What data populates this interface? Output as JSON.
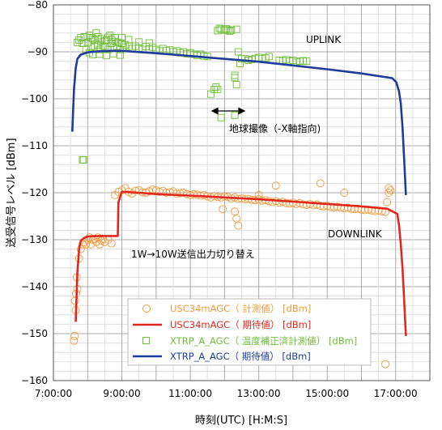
{
  "chart_data": {
    "type": "line",
    "xlabel": "時刻(UTC) [H:M:S]",
    "ylabel": "送受信号レベル [dBm]",
    "xlim": [
      7.0,
      18.0
    ],
    "ylim": [
      -160,
      -80
    ],
    "x_ticks": [
      7,
      9,
      11,
      13,
      15,
      17
    ],
    "x_tick_labels": [
      "7:00:00",
      "9:00:00",
      "11:00:00",
      "13:00:00",
      "15:00:00",
      "17:00:00"
    ],
    "y_ticks": [
      -80,
      -90,
      -100,
      -110,
      -120,
      -130,
      -140,
      -150,
      -160
    ],
    "y_tick_labels": [
      "−80",
      "−90",
      "−100",
      "−110",
      "−120",
      "−130",
      "−140",
      "−150",
      "−160"
    ],
    "grid": true,
    "legend_position": "bottom-center",
    "colors": {
      "usc_measured": "#f39a3c",
      "usc_expected": "#e0281e",
      "xtrp_measured": "#6fbf3a",
      "xtrp_expected": "#1f3c9a"
    },
    "annotations": {
      "uplink": "UPLINK",
      "downlink": "DOWNLINK",
      "earth_obs": "地球撮像（-X軸指向)",
      "switch": "1W→10W送信出力切り替え"
    },
    "series": [
      {
        "key": "xtrp_expected",
        "name": "XTRP_A_AGC（ 期待値） [dBm]",
        "style": "line",
        "x": [
          7.55,
          7.6,
          7.65,
          7.7,
          7.8,
          8.0,
          8.3,
          8.7,
          9.0,
          10.0,
          11.0,
          12.0,
          13.0,
          14.0,
          15.0,
          16.0,
          16.9,
          17.02,
          17.1,
          17.15,
          17.2,
          17.25,
          17.3
        ],
        "values": [
          -107.0,
          -98.0,
          -93.5,
          -91.5,
          -90.6,
          -90.1,
          -89.9,
          -89.8,
          -89.8,
          -90.3,
          -90.9,
          -91.5,
          -92.1,
          -92.9,
          -93.7,
          -94.6,
          -95.6,
          -96.5,
          -98.5,
          -101.0,
          -106.0,
          -113.0,
          -120.5
        ]
      },
      {
        "key": "usc_expected",
        "name": "USC34mAGC（ 期待値） [dBm]",
        "style": "line",
        "x": [
          7.65,
          7.7,
          7.75,
          7.8,
          7.9,
          8.0,
          8.3,
          8.6,
          8.88,
          8.9,
          9.0,
          9.5,
          10.0,
          11.0,
          12.0,
          13.0,
          14.0,
          15.0,
          16.0,
          16.75,
          17.05,
          17.1,
          17.15,
          17.2,
          17.25,
          17.3
        ],
        "values": [
          -147.5,
          -137.0,
          -132.0,
          -130.2,
          -129.6,
          -129.3,
          -129.2,
          -129.2,
          -129.2,
          -122.0,
          -119.8,
          -120.0,
          -120.3,
          -120.6,
          -121.0,
          -121.4,
          -121.9,
          -122.4,
          -122.9,
          -123.4,
          -124.5,
          -127.0,
          -131.0,
          -136.0,
          -143.0,
          -150.5
        ]
      },
      {
        "key": "xtrp_measured",
        "name": "XTRP_A_AGC（ 温度補正済計測値） [dBm]",
        "style": "square",
        "x": [
          7.7,
          7.75,
          7.8,
          7.85,
          7.9,
          7.95,
          8.0,
          8.05,
          8.1,
          8.15,
          8.2,
          8.25,
          8.3,
          8.35,
          8.4,
          8.45,
          8.5,
          8.55,
          8.6,
          8.65,
          8.7,
          8.75,
          8.8,
          8.85,
          8.9,
          8.95,
          9.0,
          9.05,
          9.1,
          9.2,
          9.3,
          9.4,
          9.5,
          9.6,
          9.7,
          9.8,
          9.9,
          10.0,
          10.1,
          10.2,
          10.3,
          10.4,
          10.5,
          10.6,
          10.7,
          10.8,
          10.9,
          11.0,
          11.1,
          11.2,
          11.3,
          11.4,
          11.5,
          11.6,
          11.7,
          11.75,
          11.8,
          11.85,
          11.9,
          12.0,
          12.05,
          12.1,
          12.15,
          12.2,
          12.3,
          12.35,
          12.4,
          12.45,
          12.5,
          12.6,
          12.7,
          12.8,
          12.9,
          13.0,
          13.1,
          13.2,
          13.3,
          13.6,
          13.7,
          13.8,
          13.9,
          14.0,
          14.1,
          14.2,
          14.3,
          14.4,
          8.1,
          8.2,
          8.3,
          8.4,
          8.5,
          8.6,
          8.7,
          8.8,
          9.0,
          9.2,
          9.5,
          9.8,
          8.05,
          8.15,
          8.35,
          8.55,
          8.75,
          8.95
        ],
        "values": [
          -88.0,
          -87.5,
          -87.0,
          -88.2,
          -86.8,
          -89.5,
          -88.0,
          -86.5,
          -89.0,
          -87.2,
          -88.8,
          -86.0,
          -88.5,
          -89.5,
          -87.8,
          -88.8,
          -89.0,
          -87.5,
          -89.5,
          -86.5,
          -88.2,
          -89.0,
          -87.0,
          -88.8,
          -88.0,
          -89.5,
          -88.2,
          -89.0,
          -88.5,
          -88.8,
          -89.3,
          -88.8,
          -89.2,
          -89.5,
          -88.9,
          -89.4,
          -89.0,
          -89.5,
          -89.8,
          -89.3,
          -89.7,
          -89.6,
          -90.0,
          -89.8,
          -90.2,
          -90.0,
          -90.4,
          -90.2,
          -90.5,
          -90.8,
          -90.5,
          -90.9,
          -91.0,
          -99.0,
          -98.0,
          -97.5,
          -85.5,
          -85.0,
          -85.2,
          -85.4,
          -85.1,
          -85.3,
          -85.6,
          -85.4,
          -95.0,
          -85.2,
          -90.0,
          -92.5,
          -91.5,
          -91.5,
          -91.8,
          -91.6,
          -91.4,
          -91.2,
          -91.5,
          -91.3,
          -91.0,
          -91.8,
          -91.9,
          -91.7,
          -92.0,
          -91.8,
          -92.2,
          -92.0,
          -91.9,
          -92.0,
          -87.0,
          -87.5,
          -86.8,
          -87.2,
          -87.6,
          -86.9,
          -87.3,
          -87.8,
          -87.0,
          -87.4,
          -87.9,
          -88.1,
          -90.2,
          -90.6,
          -90.5,
          -90.8,
          -90.4,
          -90.7
        ]
      },
      {
        "key": "xtrp_measured_b",
        "name": "",
        "style": "square",
        "x": [
          7.85,
          7.88,
          11.9,
          11.8,
          12.3,
          12.35,
          12.3
        ],
        "values": [
          -113.0,
          -113.0,
          -104.0,
          -98.0,
          -103.5,
          -97.0,
          -95.5
        ]
      },
      {
        "key": "usc_measured",
        "name": "USC34mAGC（ 計測値） [dBm]",
        "style": "circle",
        "x": [
          7.6,
          7.62,
          7.65,
          7.7,
          7.75,
          7.8,
          7.85,
          7.9,
          7.95,
          8.0,
          8.05,
          8.1,
          8.15,
          8.2,
          8.25,
          8.3,
          8.35,
          8.4,
          8.45,
          8.5,
          8.6,
          8.7,
          8.8,
          8.9,
          9.0,
          9.1,
          9.2,
          9.3,
          9.4,
          9.5,
          9.6,
          9.7,
          9.8,
          9.9,
          10.0,
          10.1,
          10.2,
          10.3,
          10.4,
          10.5,
          10.6,
          10.7,
          10.8,
          10.9,
          11.0,
          11.1,
          11.2,
          11.3,
          11.4,
          11.5,
          11.6,
          11.7,
          11.8,
          11.9,
          12.0,
          12.1,
          12.2,
          12.3,
          12.4,
          12.5,
          12.6,
          12.7,
          12.8,
          12.9,
          13.0,
          13.1,
          13.2,
          13.3,
          13.4,
          13.5,
          13.6,
          13.7,
          13.8,
          13.9,
          14.0,
          14.1,
          14.2,
          14.3,
          14.4,
          14.5,
          14.6,
          14.7,
          14.8,
          14.9,
          15.0,
          15.1,
          15.2,
          15.3,
          15.4,
          15.5,
          15.6,
          15.7,
          15.8,
          15.9,
          16.0,
          16.1,
          16.2,
          16.3,
          16.4,
          16.5,
          16.6,
          16.7,
          16.75,
          16.8,
          16.85,
          7.63,
          7.66,
          7.68,
          11.95,
          12.3,
          12.35,
          12.4,
          13.0,
          13.5,
          14.8,
          15.5,
          16.7,
          16.8
        ],
        "values": [
          -151.5,
          -150.5,
          -145.0,
          -140.5,
          -134.0,
          -132.0,
          -131.0,
          -130.5,
          -131.0,
          -130.0,
          -129.5,
          -131.0,
          -130.0,
          -129.8,
          -130.5,
          -129.5,
          -131.0,
          -130.2,
          -129.8,
          -130.5,
          -130.0,
          -130.8,
          -120.5,
          -119.8,
          -119.5,
          -119.0,
          -119.8,
          -120.2,
          -119.6,
          -119.4,
          -119.9,
          -120.0,
          -119.7,
          -119.3,
          -119.5,
          -119.8,
          -119.6,
          -120.0,
          -119.9,
          -119.7,
          -120.2,
          -120.1,
          -120.0,
          -120.3,
          -120.5,
          -120.3,
          -120.4,
          -120.6,
          -120.5,
          -120.8,
          -121.0,
          -120.7,
          -120.9,
          -121.0,
          -120.8,
          -120.9,
          -121.2,
          -121.0,
          -121.3,
          -121.2,
          -121.4,
          -121.3,
          -121.5,
          -121.6,
          -121.4,
          -121.7,
          -121.6,
          -121.8,
          -122.0,
          -121.8,
          -122.1,
          -121.9,
          -122.2,
          -122.3,
          -122.1,
          -122.4,
          -122.2,
          -122.5,
          -122.6,
          -122.4,
          -122.7,
          -122.5,
          -122.8,
          -122.9,
          -122.8,
          -123.0,
          -123.1,
          -123.0,
          -123.2,
          -123.3,
          -123.2,
          -123.4,
          -123.5,
          -123.4,
          -123.6,
          -123.7,
          -123.6,
          -123.8,
          -123.9,
          -123.8,
          -124.0,
          -124.1,
          -122.0,
          -120.0,
          -119.5,
          -143.0,
          -141.5,
          -138.0,
          -123.5,
          -124.0,
          -125.5,
          -127.0,
          -120.5,
          -118.5,
          -118.0,
          -120.0,
          -156.5,
          -119.0
        ]
      }
    ]
  }
}
